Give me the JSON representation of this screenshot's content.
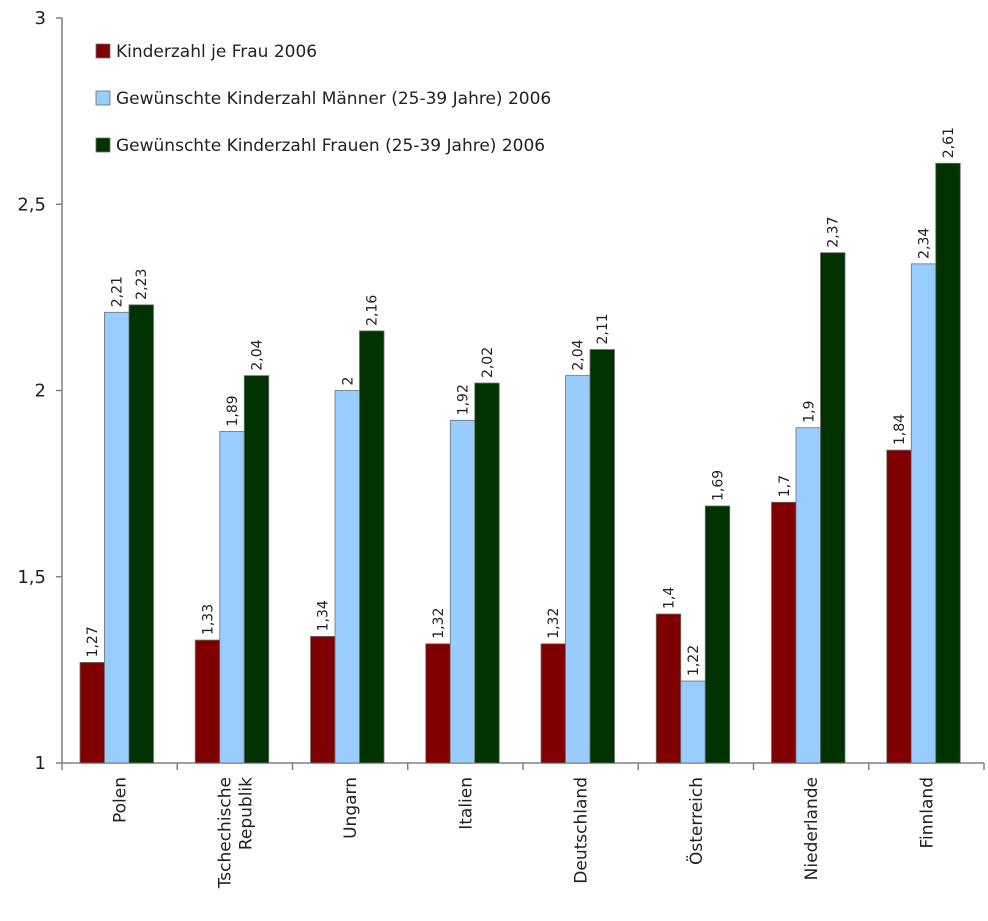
{
  "chart_data": {
    "type": "bar",
    "categories": [
      "Polen",
      "Tschechische Republik",
      "Ungarn",
      "Italien",
      "Deutschland",
      "Österreich",
      "Niederlande",
      "Finnland"
    ],
    "category_lines": [
      [
        "Polen"
      ],
      [
        "Tschechische",
        "Republik"
      ],
      [
        "Ungarn"
      ],
      [
        "Italien"
      ],
      [
        "Deutschland"
      ],
      [
        "Österreich"
      ],
      [
        "Niederlande"
      ],
      [
        "Finnland"
      ]
    ],
    "series": [
      {
        "name": "Kinderzahl je Frau 2006",
        "color": "#800000",
        "values": [
          1.27,
          1.33,
          1.34,
          1.32,
          1.32,
          1.4,
          1.7,
          1.84
        ],
        "labels": [
          "1,27",
          "1,33",
          "1,34",
          "1,32",
          "1,32",
          "1,4",
          "1,7",
          "1,84"
        ]
      },
      {
        "name": "Gewünschte Kinderzahl Männer (25-39 Jahre) 2006",
        "color": "#99ccff",
        "values": [
          2.21,
          1.89,
          2.0,
          1.92,
          2.04,
          1.22,
          1.9,
          2.34
        ],
        "labels": [
          "2,21",
          "1,89",
          "2",
          "1,92",
          "2,04",
          "1,22",
          "1,9",
          "2,34"
        ]
      },
      {
        "name": "Gewünschte Kinderzahl Frauen (25-39 Jahre) 2006",
        "color": "#003300",
        "values": [
          2.23,
          2.04,
          2.16,
          2.02,
          2.11,
          1.69,
          2.37,
          2.61
        ],
        "labels": [
          "2,23",
          "2,04",
          "2,16",
          "2,02",
          "2,11",
          "1,69",
          "2,37",
          "2,61"
        ]
      }
    ],
    "ylim": [
      1,
      3
    ],
    "yticks": [
      1,
      1.5,
      2,
      2.5,
      3
    ],
    "ytick_labels": [
      "1",
      "1,5",
      "2",
      "2,5",
      "3"
    ],
    "title": "",
    "xlabel": "",
    "ylabel": "",
    "legend_position": "top-left",
    "grid": false
  }
}
